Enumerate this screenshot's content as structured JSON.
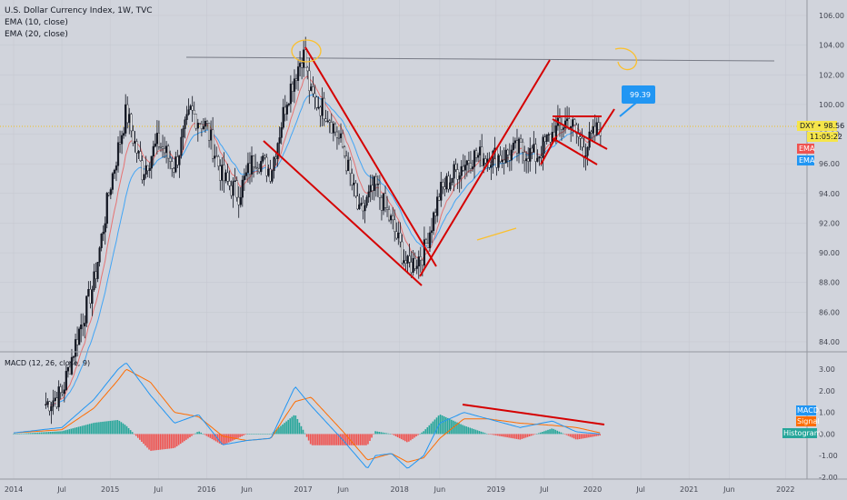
{
  "header": {
    "title": "U.S. Dollar Currency Index, 1W, TVC",
    "ema10": "EMA (10, close)",
    "ema20": "EMA (20, close)"
  },
  "price_axis": {
    "ticks": [
      "106.00",
      "104.00",
      "102.00",
      "100.00",
      "98.00",
      "96.00",
      "94.00",
      "92.00",
      "90.00",
      "88.00",
      "86.00",
      "84.00"
    ],
    "current_label": "DXY • 98.56",
    "countdown": "11:05:22",
    "ema_tag_1": "EMA",
    "ema_tag_2": "EMA"
  },
  "annotation": {
    "target_label": "99.39"
  },
  "macd": {
    "title": "MACD (12, 26, close, 9)",
    "ticks": [
      "3.00",
      "2.00",
      "1.00",
      "0.00",
      "-1.00",
      "-2.00"
    ],
    "tag_macd": "MACD",
    "tag_signal": "Signal",
    "tag_hist": "Histogram"
  },
  "time_axis": {
    "ticks": [
      "2014",
      "Jul",
      "2015",
      "Jul",
      "2016",
      "Jun",
      "2017",
      "Jun",
      "2018",
      "Jun",
      "2019",
      "Jul",
      "2020",
      "Jul",
      "2021",
      "Jun",
      "2022"
    ]
  },
  "colors": {
    "background": "#d1d4dc",
    "trendline": "#d50000",
    "ema_fast": "#e57373",
    "ema_slow": "#42a5f5",
    "resistance": "#787b86",
    "highlight": "#fbc02d",
    "macd_line": "#2196f3",
    "signal_line": "#ff6d00",
    "hist_pos": "#26a69a",
    "hist_neg": "#ef5350"
  },
  "chart_data": {
    "type": "candlestick",
    "title": "U.S. Dollar Currency Index, 1W, TVC",
    "ylim": [
      83,
      107
    ],
    "last_price": 98.56,
    "target_price": 99.39,
    "resistance_level": 103.2,
    "price_path": [
      {
        "t": "2014-05",
        "v": 79.8
      },
      {
        "t": "2014-07",
        "v": 80.5
      },
      {
        "t": "2014-09",
        "v": 84.5
      },
      {
        "t": "2014-11",
        "v": 88.0
      },
      {
        "t": "2015-01",
        "v": 94.5
      },
      {
        "t": "2015-03",
        "v": 99.5
      },
      {
        "t": "2015-05",
        "v": 95.5
      },
      {
        "t": "2015-07",
        "v": 97.5
      },
      {
        "t": "2015-09",
        "v": 95.8
      },
      {
        "t": "2015-11",
        "v": 99.5
      },
      {
        "t": "2016-01",
        "v": 98.5
      },
      {
        "t": "2016-03",
        "v": 95.0
      },
      {
        "t": "2016-05",
        "v": 94.0
      },
      {
        "t": "2016-07",
        "v": 96.5
      },
      {
        "t": "2016-09",
        "v": 95.5
      },
      {
        "t": "2016-11",
        "v": 100.5
      },
      {
        "t": "2017-01",
        "v": 103.5
      },
      {
        "t": "2017-02",
        "v": 100.5
      },
      {
        "t": "2017-04",
        "v": 99.5
      },
      {
        "t": "2017-06",
        "v": 97.0
      },
      {
        "t": "2017-08",
        "v": 92.5
      },
      {
        "t": "2017-10",
        "v": 94.5
      },
      {
        "t": "2017-12",
        "v": 92.0
      },
      {
        "t": "2018-02",
        "v": 89.0
      },
      {
        "t": "2018-04",
        "v": 90.0
      },
      {
        "t": "2018-06",
        "v": 94.0
      },
      {
        "t": "2018-08",
        "v": 95.5
      },
      {
        "t": "2018-10",
        "v": 96.5
      },
      {
        "t": "2018-12",
        "v": 96.5
      },
      {
        "t": "2019-02",
        "v": 96.5
      },
      {
        "t": "2019-04",
        "v": 97.0
      },
      {
        "t": "2019-06",
        "v": 96.5
      },
      {
        "t": "2019-08",
        "v": 98.0
      },
      {
        "t": "2019-10",
        "v": 99.0
      },
      {
        "t": "2019-12",
        "v": 97.0
      },
      {
        "t": "2020-02",
        "v": 98.56
      }
    ],
    "series": [
      {
        "name": "EMA (10, close)",
        "color": "#e57373"
      },
      {
        "name": "EMA (20, close)",
        "color": "#42a5f5"
      }
    ],
    "macd_ylim": [
      -2.2,
      3.6
    ],
    "macd_path": [
      {
        "t": "2014-01",
        "macd": 0.05,
        "signal": 0.05
      },
      {
        "t": "2014-07",
        "macd": 0.3,
        "signal": 0.2
      },
      {
        "t": "2014-11",
        "macd": 1.6,
        "signal": 1.2
      },
      {
        "t": "2015-02",
        "macd": 3.0,
        "signal": 2.5
      },
      {
        "t": "2015-03",
        "macd": 3.3,
        "signal": 3.0
      },
      {
        "t": "2015-06",
        "macd": 1.8,
        "signal": 2.4
      },
      {
        "t": "2015-09",
        "macd": 0.5,
        "signal": 1.0
      },
      {
        "t": "2015-12",
        "macd": 0.9,
        "signal": 0.8
      },
      {
        "t": "2016-03",
        "macd": -0.5,
        "signal": -0.1
      },
      {
        "t": "2016-06",
        "macd": -0.3,
        "signal": -0.3
      },
      {
        "t": "2016-09",
        "macd": -0.2,
        "signal": -0.2
      },
      {
        "t": "2016-12",
        "macd": 2.2,
        "signal": 1.5
      },
      {
        "t": "2017-02",
        "macd": 1.3,
        "signal": 1.7
      },
      {
        "t": "2017-06",
        "macd": -0.3,
        "signal": 0.1
      },
      {
        "t": "2017-09",
        "macd": -1.6,
        "signal": -1.2
      },
      {
        "t": "2017-10",
        "macd": -1.0,
        "signal": -1.1
      },
      {
        "t": "2017-12",
        "macd": -0.9,
        "signal": -0.9
      },
      {
        "t": "2018-02",
        "macd": -1.6,
        "signal": -1.3
      },
      {
        "t": "2018-04",
        "macd": -1.0,
        "signal": -1.1
      },
      {
        "t": "2018-06",
        "macd": 0.5,
        "signal": -0.2
      },
      {
        "t": "2018-09",
        "macd": 1.0,
        "signal": 0.7
      },
      {
        "t": "2018-12",
        "macd": 0.7,
        "signal": 0.7
      },
      {
        "t": "2019-04",
        "macd": 0.3,
        "signal": 0.5
      },
      {
        "t": "2019-08",
        "macd": 0.6,
        "signal": 0.4
      },
      {
        "t": "2019-11",
        "macd": 0.1,
        "signal": 0.3
      },
      {
        "t": "2020-02",
        "macd": 0.0,
        "signal": 0.05
      }
    ]
  }
}
